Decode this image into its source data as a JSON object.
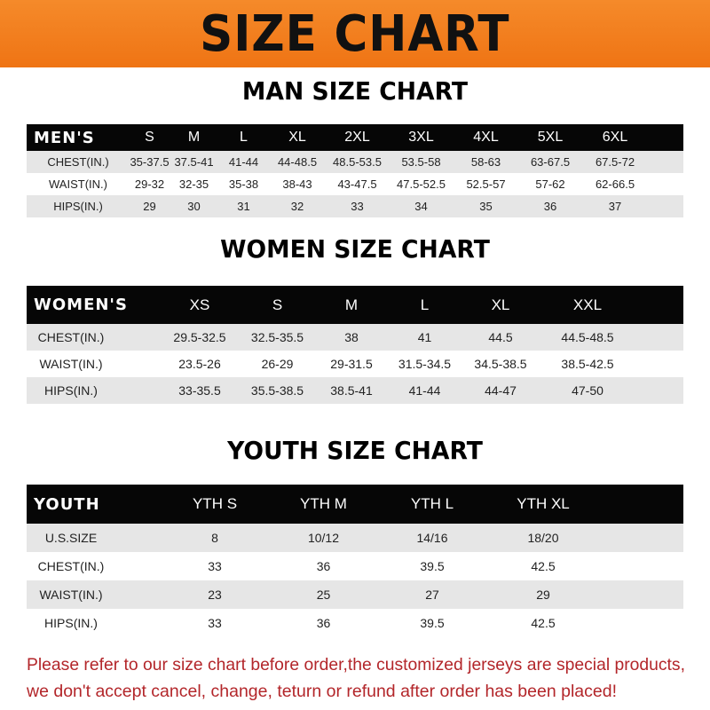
{
  "banner_title": "SIZE CHART",
  "colors": {
    "banner": "#f07c1c",
    "header_row": "#060606",
    "note_text": "#b3262a"
  },
  "men": {
    "title": "MAN SIZE CHART",
    "header": "MEN'S",
    "sizes": [
      "S",
      "M",
      "L",
      "XL",
      "2XL",
      "3XL",
      "4XL",
      "5XL",
      "6XL"
    ],
    "rows": [
      {
        "label": "CHEST(IN.)",
        "values": [
          "35-37.5",
          "37.5-41",
          "41-44",
          "44-48.5",
          "48.5-53.5",
          "53.5-58",
          "58-63",
          "63-67.5",
          "67.5-72"
        ]
      },
      {
        "label": "WAIST(IN.)",
        "values": [
          "29-32",
          "32-35",
          "35-38",
          "38-43",
          "43-47.5",
          "47.5-52.5",
          "52.5-57",
          "57-62",
          "62-66.5"
        ]
      },
      {
        "label": "HIPS(IN.)",
        "values": [
          "29",
          "30",
          "31",
          "32",
          "33",
          "34",
          "35",
          "36",
          "37"
        ]
      }
    ]
  },
  "women": {
    "title": "WOMEN SIZE CHART",
    "header": "WOMEN'S",
    "sizes": [
      "XS",
      "S",
      "M",
      "L",
      "XL",
      "XXL"
    ],
    "rows": [
      {
        "label": "CHEST(IN.)",
        "values": [
          "29.5-32.5",
          "32.5-35.5",
          "38",
          "41",
          "44.5",
          "44.5-48.5"
        ]
      },
      {
        "label": "WAIST(IN.)",
        "values": [
          "23.5-26",
          "26-29",
          "29-31.5",
          "31.5-34.5",
          "34.5-38.5",
          "38.5-42.5"
        ]
      },
      {
        "label": "HIPS(IN.)",
        "values": [
          "33-35.5",
          "35.5-38.5",
          "38.5-41",
          "41-44",
          "44-47",
          "47-50"
        ]
      }
    ]
  },
  "youth": {
    "title": "YOUTH SIZE CHART",
    "header": "YOUTH",
    "sizes": [
      "YTH S",
      "YTH M",
      "YTH L",
      "YTH XL"
    ],
    "rows": [
      {
        "label": "U.S.SIZE",
        "values": [
          "8",
          "10/12",
          "14/16",
          "18/20"
        ]
      },
      {
        "label": "CHEST(IN.)",
        "values": [
          "33",
          "36",
          "39.5",
          "42.5"
        ]
      },
      {
        "label": "WAIST(IN.)",
        "values": [
          "23",
          "25",
          "27",
          "29"
        ]
      },
      {
        "label": "HIPS(IN.)",
        "values": [
          "33",
          "36",
          "39.5",
          "42.5"
        ]
      }
    ]
  },
  "note": {
    "line1": "Please refer to our size chart before order,the customized jerseys are special products,",
    "line2": "we don't accept cancel, change, teturn or refund after order has been placed!"
  }
}
